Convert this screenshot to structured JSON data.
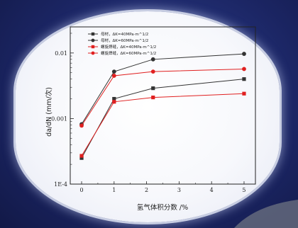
{
  "chart_data": {
    "type": "line",
    "title": "",
    "xlabel": "氢气体积分数 /%",
    "ylabel": "da/dN (mm/次)",
    "x_ticks": [
      "0",
      "1",
      "2",
      "3",
      "4",
      "5"
    ],
    "y_ticks": [
      "1E-4",
      "0.001",
      "0.01"
    ],
    "xlim": [
      -0.35,
      5.35
    ],
    "ylim": [
      0.0001,
      0.025
    ],
    "y_scale": "log",
    "legend_position": "top-left",
    "grid": false,
    "x": [
      0,
      1,
      2.2,
      5
    ],
    "series": [
      {
        "name": "母材，ΔK=40MPa·m^1/2",
        "color": "#333333",
        "marker": "square",
        "values": [
          0.00025,
          0.002,
          0.0029,
          0.004
        ]
      },
      {
        "name": "母材，ΔK=60MPa·m^1/2",
        "color": "#333333",
        "marker": "circle",
        "values": [
          0.00082,
          0.0052,
          0.008,
          0.0097
        ]
      },
      {
        "name": "螺旋焊缝，ΔK=40MPa·m^1/2",
        "color": "#e02020",
        "marker": "square",
        "values": [
          0.00027,
          0.0018,
          0.0021,
          0.0024
        ]
      },
      {
        "name": "螺旋焊缝，ΔK=60MPa·m^1/2",
        "color": "#e02020",
        "marker": "circle",
        "values": [
          0.00078,
          0.0045,
          0.0052,
          0.0057
        ]
      }
    ]
  }
}
